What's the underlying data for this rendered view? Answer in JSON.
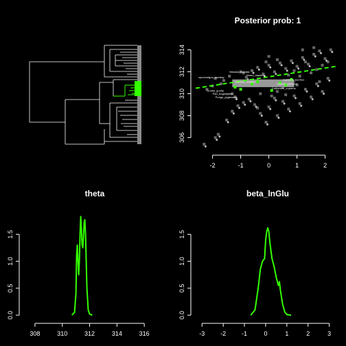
{
  "chart_data": [
    {
      "type": "diagram",
      "kind": "phylogenetic-tree",
      "highlight_color": "#33ff00"
    },
    {
      "type": "scatter",
      "title": "Posterior prob: 1",
      "xlim": [
        -2.6,
        2.4
      ],
      "ylim": [
        304.9,
        315.1
      ],
      "xticks": [
        -2,
        -1,
        0,
        1,
        2
      ],
      "yticks": [
        306,
        308,
        310,
        312,
        314
      ],
      "trend_line": {
        "x": [
          -2.6,
          2.4
        ],
        "y": [
          310.5,
          312.5
        ],
        "color": "#33ff00"
      },
      "highlight_points": [
        [
          -1.2,
          310.6
        ],
        [
          -1.0,
          310.4
        ],
        [
          -0.6,
          310.9
        ],
        [
          -0.4,
          311.1
        ],
        [
          0.1,
          310.3
        ],
        [
          0.4,
          311.0
        ],
        [
          0.6,
          310.8
        ],
        [
          0.8,
          311.3
        ]
      ],
      "labels": [
        "Macaca_fuscata",
        "cynomolgus_monkey",
        "Macaca_mulatta",
        "Gorilla_gorilla",
        "Pan_troglodytes",
        "Pongo_pygmaeus",
        "Homo_sapiens",
        "Callithrix_jacchus",
        "Callicebus_cupreus",
        "Saimiri_sciureus"
      ],
      "grey_points": [
        [
          -2.3,
          305.4
        ],
        [
          -1.9,
          306.0
        ],
        [
          -1.8,
          306.3
        ],
        [
          -1.5,
          307.6
        ],
        [
          -1.3,
          308.4
        ],
        [
          -1.1,
          308.9
        ],
        [
          -0.9,
          309.2
        ],
        [
          -1.2,
          309.7
        ],
        [
          -0.7,
          309.5
        ],
        [
          -0.5,
          309.0
        ],
        [
          -0.3,
          308.2
        ],
        [
          -0.1,
          307.4
        ],
        [
          0.0,
          308.8
        ],
        [
          0.2,
          309.6
        ],
        [
          0.3,
          308.0
        ],
        [
          0.5,
          309.3
        ],
        [
          0.7,
          308.6
        ],
        [
          0.9,
          309.8
        ],
        [
          1.1,
          309.1
        ],
        [
          1.3,
          310.4
        ],
        [
          1.5,
          309.7
        ],
        [
          1.7,
          310.9
        ],
        [
          1.9,
          310.2
        ],
        [
          2.1,
          311.4
        ],
        [
          -0.8,
          311.5
        ],
        [
          -0.6,
          312.1
        ],
        [
          -0.4,
          312.4
        ],
        [
          -0.2,
          311.8
        ],
        [
          0.0,
          312.6
        ],
        [
          0.2,
          312.0
        ],
        [
          0.4,
          312.8
        ],
        [
          0.6,
          312.3
        ],
        [
          0.8,
          313.0
        ],
        [
          1.0,
          312.5
        ],
        [
          1.2,
          313.3
        ],
        [
          1.4,
          312.7
        ],
        [
          1.6,
          313.6
        ],
        [
          1.8,
          313.9
        ],
        [
          2.0,
          313.2
        ],
        [
          2.2,
          314.0
        ],
        [
          -1.6,
          311.2
        ],
        [
          -1.4,
          311.6
        ],
        [
          -1.7,
          310.9
        ],
        [
          -2.0,
          310.7
        ],
        [
          -1.9,
          311.4
        ],
        [
          -0.3,
          310.0
        ],
        [
          0.1,
          309.8
        ],
        [
          0.3,
          310.2
        ],
        [
          0.5,
          310.6
        ],
        [
          0.7,
          311.7
        ],
        [
          0.9,
          312.1
        ],
        [
          1.1,
          311.6
        ],
        [
          1.3,
          312.9
        ],
        [
          1.5,
          311.9
        ],
        [
          1.7,
          312.2
        ],
        [
          1.9,
          312.6
        ],
        [
          2.1,
          312.9
        ],
        [
          -1.0,
          312.0
        ],
        [
          -0.9,
          311.9
        ],
        [
          -0.1,
          312.9
        ],
        [
          0.0,
          313.4
        ],
        [
          0.3,
          313.1
        ],
        [
          1.2,
          314.0
        ],
        [
          1.6,
          314.2
        ],
        [
          -2.2,
          310.4
        ],
        [
          -1.3,
          310.0
        ],
        [
          -0.4,
          308.7
        ],
        [
          0.6,
          309.9
        ],
        [
          1.0,
          310.8
        ],
        [
          1.8,
          311.1
        ]
      ]
    },
    {
      "type": "line",
      "title": "theta",
      "xlim": [
        307.2,
        317.6
      ],
      "ylim": [
        -0.05,
        1.95
      ],
      "xticks": [
        308,
        310,
        312,
        314,
        316
      ],
      "yticks": [
        0.0,
        0.5,
        1.0,
        1.5
      ],
      "color": "#33ff00",
      "x": [
        310.7,
        310.9,
        311.0,
        311.05,
        311.1,
        311.15,
        311.2,
        311.25,
        311.3,
        311.35,
        311.4,
        311.45,
        311.5,
        311.55,
        311.6,
        311.65,
        311.7,
        311.75,
        311.8,
        311.9,
        312.0,
        312.2
      ],
      "y": [
        0.0,
        0.05,
        0.4,
        1.1,
        1.3,
        1.0,
        0.75,
        1.0,
        1.5,
        1.83,
        1.6,
        1.3,
        1.25,
        1.45,
        1.72,
        1.77,
        1.5,
        1.0,
        0.5,
        0.1,
        0.02,
        0.0
      ]
    },
    {
      "type": "line",
      "title": "beta_lnGlu",
      "xlim": [
        -3.3,
        3.4
      ],
      "ylim": [
        -0.05,
        1.95
      ],
      "xticks": [
        -3,
        -2,
        -1,
        0,
        1,
        2,
        3
      ],
      "yticks": [
        0.0,
        0.5,
        1.0,
        1.5
      ],
      "color": "#33ff00",
      "x": [
        -0.7,
        -0.5,
        -0.35,
        -0.25,
        -0.15,
        -0.05,
        0.0,
        0.05,
        0.1,
        0.15,
        0.2,
        0.3,
        0.4,
        0.5,
        0.6,
        0.65,
        0.7,
        0.8,
        0.9,
        1.0,
        1.2
      ],
      "y": [
        0.0,
        0.1,
        0.5,
        0.85,
        1.0,
        1.05,
        1.4,
        1.55,
        1.62,
        1.55,
        1.35,
        1.05,
        0.9,
        0.7,
        0.55,
        0.62,
        0.45,
        0.2,
        0.06,
        0.01,
        0.0
      ]
    }
  ]
}
